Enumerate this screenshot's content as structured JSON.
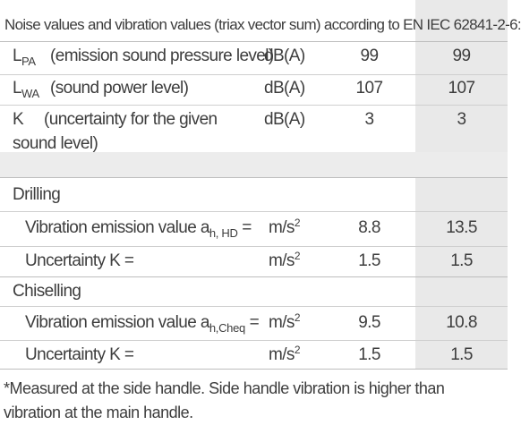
{
  "header": "Noise values and vibration values (triax vector sum) according to EN IEC 62841-2-6:",
  "noise": [
    {
      "sym": "L",
      "sub": "PA",
      "desc": "(emission sound pressure level)",
      "unit": "dB(A)",
      "v1": "99",
      "v2": "99"
    },
    {
      "sym": "L",
      "sub": "WA",
      "desc": "(sound power level)",
      "unit": "dB(A)",
      "v1": "107",
      "v2": "107"
    },
    {
      "sym": "K",
      "desc1": "(uncertainty for the given",
      "desc2": "sound level)",
      "unit": "dB(A)",
      "v1": "3",
      "v2": "3"
    }
  ],
  "drilling": {
    "title": "Drilling",
    "emission_label": "Vibration emission value a",
    "emission_sub": "h, HD",
    "emission_eq": " =",
    "unit_base": "m/s",
    "unit_exp": "2",
    "emission_v1": "8.8",
    "emission_v2": "13.5",
    "uncert_label": "Uncertainty K =",
    "uncert_v1": "1.5",
    "uncert_v2": "1.5"
  },
  "chiselling": {
    "title": "Chiselling",
    "emission_label": "Vibration emission value a",
    "emission_sub": "h,Cheq",
    "emission_eq": " =",
    "unit_base": "m/s",
    "unit_exp": "2",
    "emission_v1": "9.5",
    "emission_v2": "10.8",
    "uncert_label": "Uncertainty K =",
    "uncert_v1": "1.5",
    "uncert_v2": "1.5"
  },
  "footnote": "*Measured at the side handle. Side handle vibration is higher than vibration at the main handle."
}
